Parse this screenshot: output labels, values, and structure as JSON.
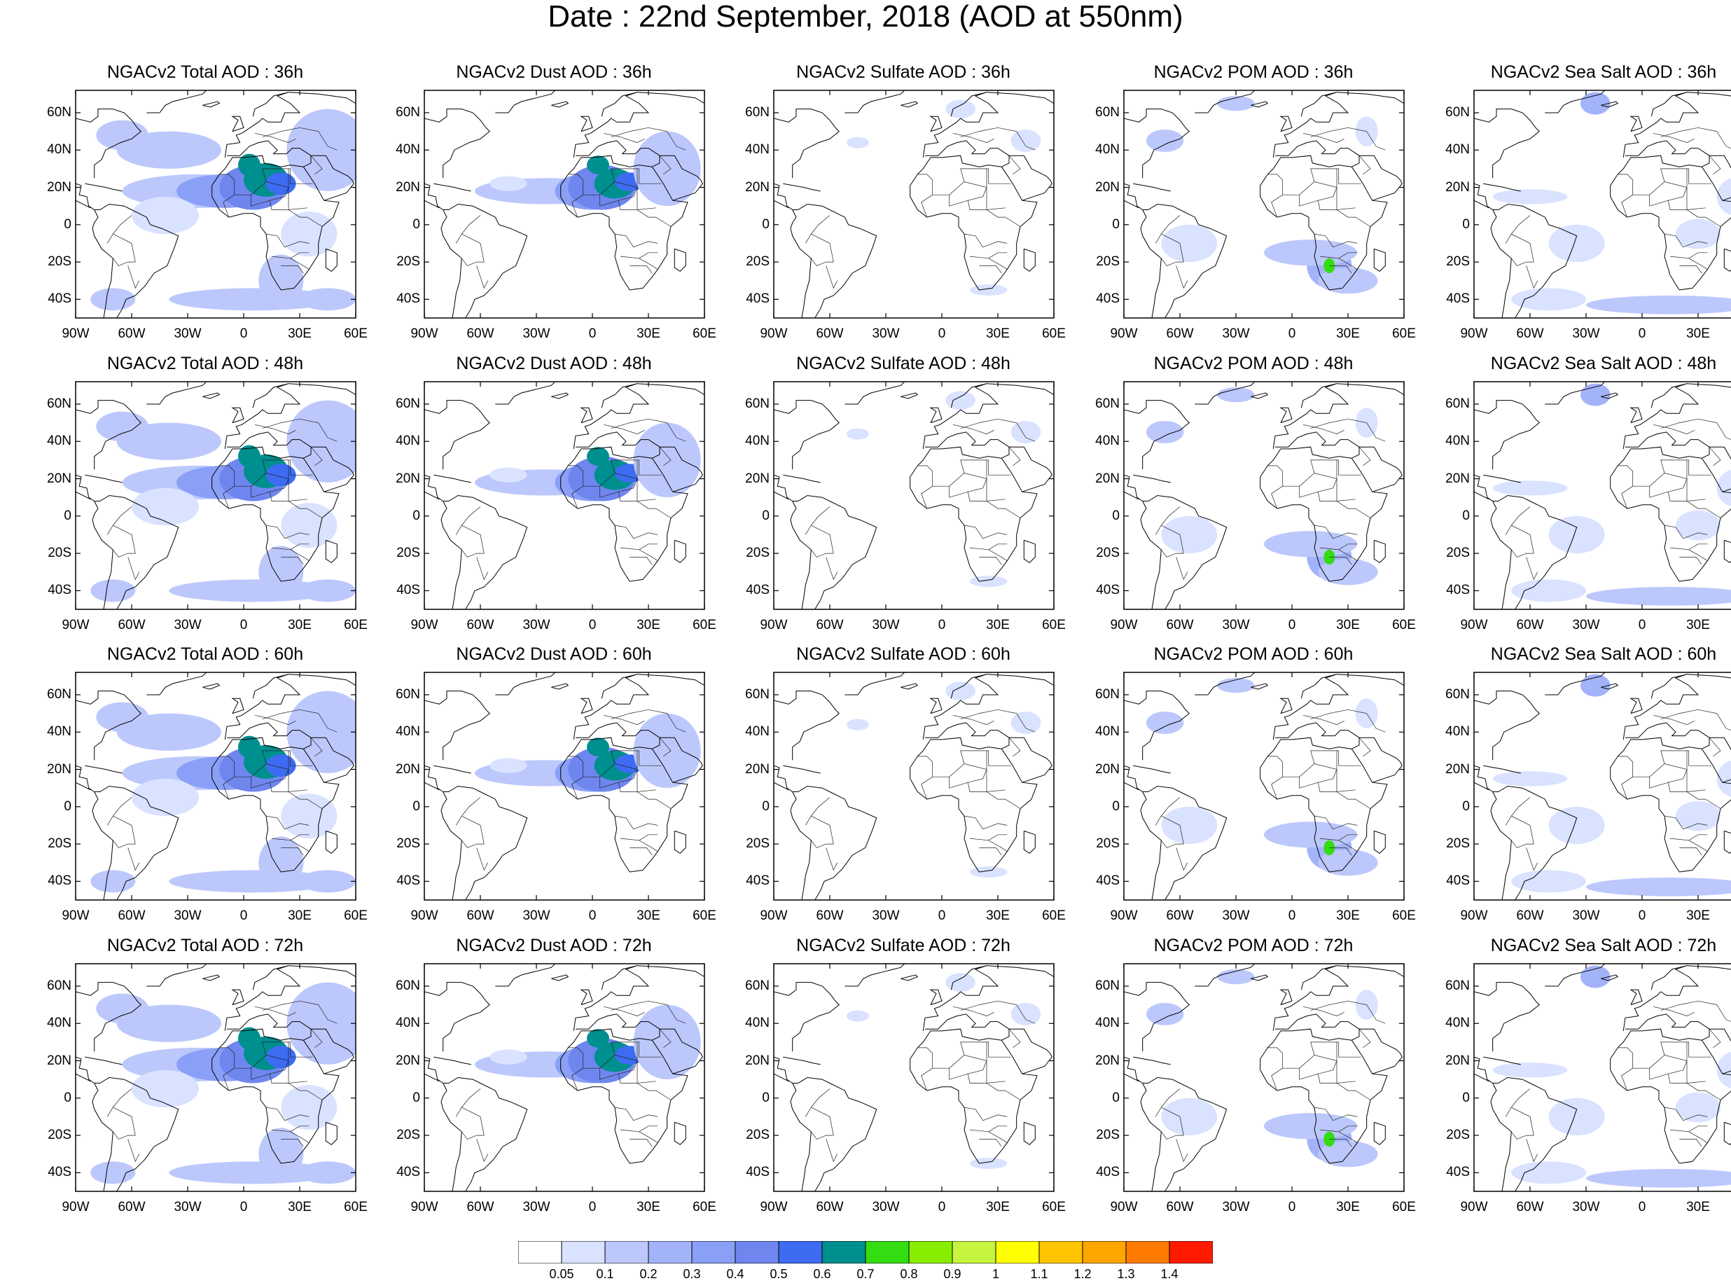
{
  "title": "Date : 22nd September, 2018 (AOD at 550nm)",
  "panels": [
    {
      "title": "NGACv2 Total AOD : 36h",
      "field": "total"
    },
    {
      "title": "NGACv2 Dust AOD : 36h",
      "field": "dust"
    },
    {
      "title": "NGACv2 Sulfate AOD : 36h",
      "field": "sulfate"
    },
    {
      "title": "NGACv2 POM AOD : 36h",
      "field": "pom"
    },
    {
      "title": "NGACv2 Sea Salt AOD : 36h",
      "field": "seasalt"
    },
    {
      "title": "NGACv2 Total AOD : 48h",
      "field": "total"
    },
    {
      "title": "NGACv2 Dust AOD : 48h",
      "field": "dust"
    },
    {
      "title": "NGACv2 Sulfate AOD : 48h",
      "field": "sulfate"
    },
    {
      "title": "NGACv2 POM AOD : 48h",
      "field": "pom"
    },
    {
      "title": "NGACv2 Sea Salt AOD : 48h",
      "field": "seasalt"
    },
    {
      "title": "NGACv2 Total AOD : 60h",
      "field": "total"
    },
    {
      "title": "NGACv2 Dust AOD : 60h",
      "field": "dust"
    },
    {
      "title": "NGACv2 Sulfate AOD : 60h",
      "field": "sulfate"
    },
    {
      "title": "NGACv2 POM AOD : 60h",
      "field": "pom"
    },
    {
      "title": "NGACv2 Sea Salt AOD : 60h",
      "field": "seasalt"
    },
    {
      "title": "NGACv2 Total AOD : 72h",
      "field": "total"
    },
    {
      "title": "NGACv2 Dust AOD : 72h",
      "field": "dust"
    },
    {
      "title": "NGACv2 Sulfate AOD : 72h",
      "field": "sulfate"
    },
    {
      "title": "NGACv2 POM AOD : 72h",
      "field": "pom"
    },
    {
      "title": "NGACv2 Sea Salt  AOD : 72h",
      "field": "seasalt"
    }
  ],
  "map": {
    "lon_range": [
      -90,
      60
    ],
    "lat_range": [
      -50,
      72
    ],
    "lon_ticks": [
      {
        "value": -90,
        "label": "90W"
      },
      {
        "value": -60,
        "label": "60W"
      },
      {
        "value": -30,
        "label": "30W"
      },
      {
        "value": 0,
        "label": "0"
      },
      {
        "value": 30,
        "label": "30E"
      },
      {
        "value": 60,
        "label": "60E"
      }
    ],
    "lat_ticks": [
      {
        "value": 60,
        "label": "60N"
      },
      {
        "value": 40,
        "label": "40N"
      },
      {
        "value": 20,
        "label": "20N"
      },
      {
        "value": 0,
        "label": "0"
      },
      {
        "value": -20,
        "label": "20S"
      },
      {
        "value": -40,
        "label": "40S"
      }
    ]
  },
  "colorbar": {
    "labels": [
      "0.05",
      "0.1",
      "0.2",
      "0.3",
      "0.4",
      "0.5",
      "0.6",
      "0.7",
      "0.8",
      "0.9",
      "1",
      "1.1",
      "1.2",
      "1.3",
      "1.4"
    ],
    "colors": [
      "#ffffff",
      "#d9e2ff",
      "#bcc8fc",
      "#a3b3fa",
      "#8a9ff6",
      "#6f86ef",
      "#3d6cf2",
      "#008f8f",
      "#33dd11",
      "#88ee00",
      "#c6f53f",
      "#ffff00",
      "#ffc400",
      "#ffa500",
      "#ff7a00",
      "#ff1a00"
    ]
  }
}
